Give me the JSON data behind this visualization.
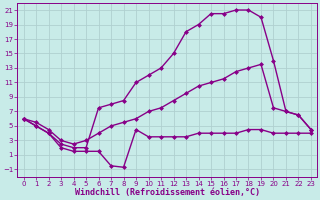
{
  "background_color": "#c8ebe8",
  "grid_color": "#b0d0d0",
  "line_color": "#880088",
  "xlabel": "Windchill (Refroidissement éolien,°C)",
  "xlim": [
    -0.5,
    23.5
  ],
  "ylim": [
    -2,
    22
  ],
  "xticks": [
    0,
    1,
    2,
    3,
    4,
    5,
    6,
    7,
    8,
    9,
    10,
    11,
    12,
    13,
    14,
    15,
    16,
    17,
    18,
    19,
    20,
    21,
    22,
    23
  ],
  "yticks": [
    -1,
    1,
    3,
    5,
    7,
    9,
    11,
    13,
    15,
    17,
    19,
    21
  ],
  "curve1_x": [
    0,
    1,
    2,
    3,
    4,
    5,
    6,
    7,
    8,
    9,
    10,
    11,
    12,
    13,
    14,
    15,
    16,
    17,
    18,
    19,
    20,
    21,
    22,
    23
  ],
  "curve1_y": [
    6,
    5,
    4,
    2.5,
    2,
    2,
    7.5,
    8,
    8.5,
    11,
    12,
    13,
    15,
    18,
    19,
    20.5,
    20.5,
    21,
    21,
    20,
    14,
    7,
    6.5,
    4.5
  ],
  "curve2_x": [
    0,
    1,
    2,
    3,
    4,
    5,
    6,
    7,
    8,
    9,
    10,
    11,
    12,
    13,
    14,
    15,
    16,
    17,
    18,
    19,
    20,
    21,
    22,
    23
  ],
  "curve2_y": [
    6,
    5.5,
    4.5,
    3,
    2.5,
    3,
    4,
    5,
    5.5,
    6,
    7,
    7.5,
    8.5,
    9.5,
    10.5,
    11,
    11.5,
    12.5,
    13,
    13.5,
    7.5,
    7,
    6.5,
    4.5
  ],
  "curve3_x": [
    0,
    1,
    2,
    3,
    4,
    5,
    6,
    7,
    8,
    9,
    10,
    11,
    12,
    13,
    14,
    15,
    16,
    17,
    18,
    19,
    20,
    21,
    22,
    23
  ],
  "curve3_y": [
    6,
    5,
    4,
    2,
    1.5,
    1.5,
    1.5,
    -0.5,
    -0.7,
    4.5,
    3.5,
    3.5,
    3.5,
    3.5,
    4,
    4,
    4,
    4,
    4.5,
    4.5,
    4,
    4,
    4,
    4
  ],
  "marker": "D",
  "markersize": 2.5,
  "linewidth": 1.0,
  "tick_fontsize": 5,
  "xlabel_fontsize": 6
}
